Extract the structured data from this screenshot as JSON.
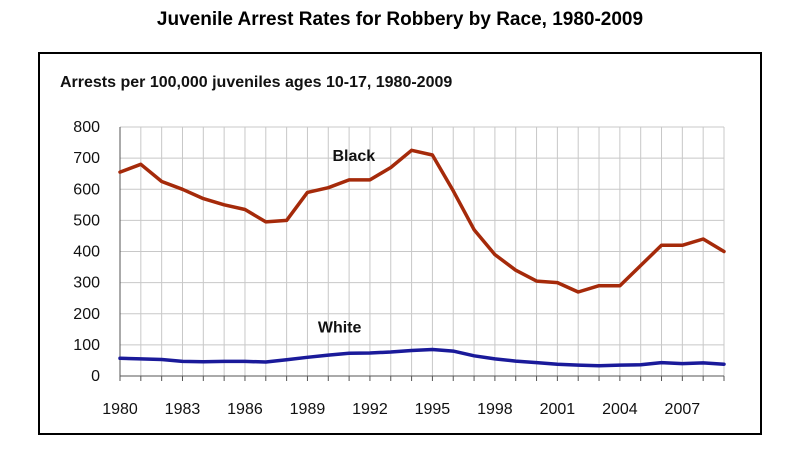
{
  "title": "Juvenile Arrest Rates for Robbery by Race, 1980-2009",
  "chart_data": {
    "type": "line",
    "title": "Juvenile Arrest Rates for Robbery by Race, 1980-2009",
    "subtitle": "Arrests per 100,000 juveniles ages 10-17, 1980-2009",
    "xlabel": "",
    "ylabel": "",
    "x": [
      1980,
      1981,
      1982,
      1983,
      1984,
      1985,
      1986,
      1987,
      1988,
      1989,
      1990,
      1991,
      1992,
      1993,
      1994,
      1995,
      1996,
      1997,
      1998,
      1999,
      2000,
      2001,
      2002,
      2003,
      2004,
      2005,
      2006,
      2007,
      2008,
      2009
    ],
    "x_ticks": [
      "1980",
      "1983",
      "1986",
      "1989",
      "1992",
      "1995",
      "1998",
      "2001",
      "2004",
      "2007"
    ],
    "y_ticks": [
      "0",
      "100",
      "200",
      "300",
      "400",
      "500",
      "600",
      "700",
      "800"
    ],
    "ylim": [
      0,
      800
    ],
    "xlim": [
      1980,
      2009
    ],
    "grid": true,
    "series": [
      {
        "name": "Black",
        "color": "#a52a0a",
        "values": [
          655,
          680,
          625,
          600,
          570,
          550,
          535,
          495,
          500,
          590,
          605,
          630,
          630,
          670,
          725,
          710,
          595,
          470,
          390,
          340,
          305,
          300,
          270,
          290,
          290,
          355,
          420,
          420,
          440,
          400
        ]
      },
      {
        "name": "White",
        "color": "#1a1a9a",
        "values": [
          57,
          55,
          53,
          47,
          46,
          47,
          47,
          45,
          52,
          60,
          67,
          73,
          74,
          77,
          82,
          85,
          80,
          65,
          55,
          48,
          43,
          38,
          35,
          33,
          35,
          36,
          43,
          40,
          42,
          38
        ]
      }
    ]
  }
}
